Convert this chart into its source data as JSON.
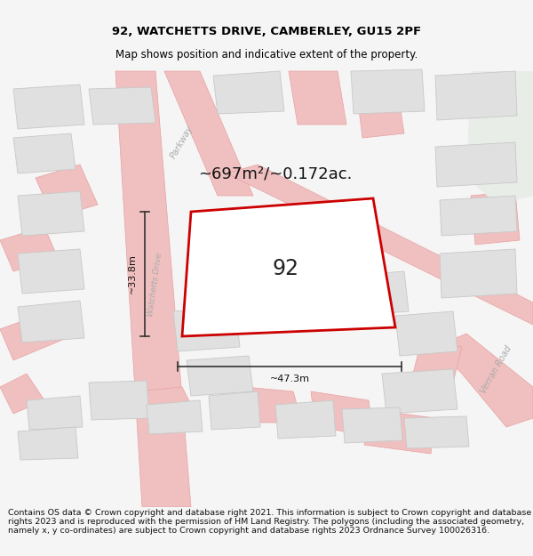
{
  "title_line1": "92, WATCHETTS DRIVE, CAMBERLEY, GU15 2PF",
  "title_line2": "Map shows position and indicative extent of the property.",
  "area_text": "~697m²/~0.172ac.",
  "label_92": "92",
  "dim_horiz": "~47.3m",
  "dim_vert": "~33.8m",
  "road_label_parkway": "Parkway",
  "road_label_watchetts": "Watchetts Drive",
  "road_label_verran1": "Verran Road",
  "road_label_verran2": "Verran Road",
  "footer_text": "Contains OS data © Crown copyright and database right 2021. This information is subject to Crown copyright and database rights 2023 and is reproduced with the permission of HM Land Registry. The polygons (including the associated geometry, namely x, y co-ordinates) are subject to Crown copyright and database rights 2023 Ordnance Survey 100026316.",
  "bg_color": "#f5f5f5",
  "map_bg": "#ffffff",
  "road_color": "#f0c0c0",
  "road_edge_color": "#e8a0a0",
  "building_color": "#e0e0e0",
  "building_edge": "#c8c8c8",
  "plot_outline": "#cc0000",
  "green_area": "#e8ede8",
  "dim_color": "#333333"
}
